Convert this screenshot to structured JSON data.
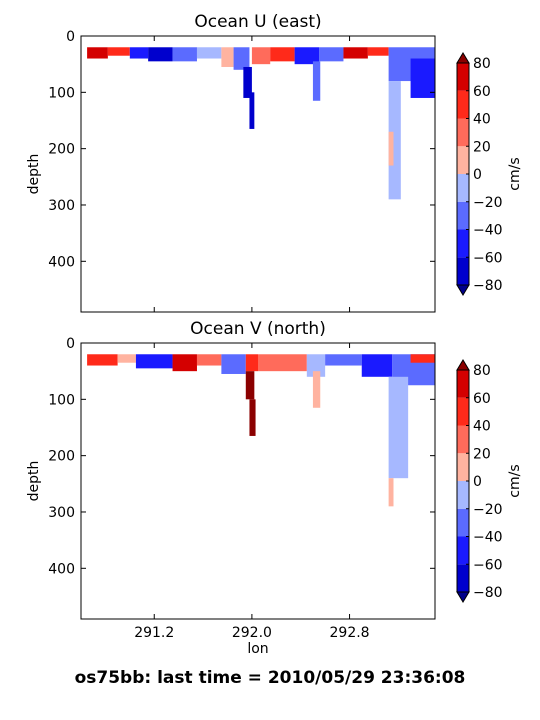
{
  "figure": {
    "main_title": "os75bb: last time = 2010/05/29 23:36:08"
  },
  "colors": {
    "levels": [
      {
        "range": [
          -100,
          -80
        ],
        "color": "#00008b"
      },
      {
        "range": [
          -80,
          -60
        ],
        "color": "#0000cd"
      },
      {
        "range": [
          -60,
          -40
        ],
        "color": "#1a1aff"
      },
      {
        "range": [
          -40,
          -20
        ],
        "color": "#5b6bff"
      },
      {
        "range": [
          -20,
          0
        ],
        "color": "#a6b8ff"
      },
      {
        "range": [
          0,
          20
        ],
        "color": "#ffb3a0"
      },
      {
        "range": [
          20,
          40
        ],
        "color": "#ff6b5b"
      },
      {
        "range": [
          40,
          60
        ],
        "color": "#ff2a1a"
      },
      {
        "range": [
          60,
          80
        ],
        "color": "#d40000"
      },
      {
        "range": [
          80,
          100
        ],
        "color": "#8b0000"
      }
    ]
  },
  "chart_data": [
    {
      "type": "heatmap",
      "title": "Ocean U (east)",
      "xlabel": "",
      "ylabel": "depth",
      "xlim": [
        290.6,
        293.5
      ],
      "ylim": [
        490,
        0
      ],
      "yticks": [
        0,
        100,
        200,
        300,
        400
      ],
      "xticks": [
        291.2,
        292.0,
        292.8
      ],
      "show_xticklabels": false,
      "colorbar": {
        "label": "cm/s",
        "ticks": [
          80,
          60,
          40,
          20,
          0,
          -20,
          -40,
          -60,
          -80
        ],
        "extend": "both"
      },
      "cells": [
        {
          "x": [
            290.65,
            290.82
          ],
          "z": [
            20,
            40
          ],
          "v": 70
        },
        {
          "x": [
            290.82,
            291.0
          ],
          "z": [
            20,
            35
          ],
          "v": 50
        },
        {
          "x": [
            291.0,
            291.15
          ],
          "z": [
            20,
            40
          ],
          "v": -50
        },
        {
          "x": [
            291.15,
            291.35
          ],
          "z": [
            20,
            45
          ],
          "v": -70
        },
        {
          "x": [
            291.35,
            291.55
          ],
          "z": [
            20,
            45
          ],
          "v": -30
        },
        {
          "x": [
            291.55,
            291.75
          ],
          "z": [
            20,
            40
          ],
          "v": -15
        },
        {
          "x": [
            291.75,
            291.85
          ],
          "z": [
            20,
            55
          ],
          "v": 15
        },
        {
          "x": [
            291.85,
            291.98
          ],
          "z": [
            20,
            60
          ],
          "v": -30
        },
        {
          "x": [
            291.93,
            292.0
          ],
          "z": [
            55,
            110
          ],
          "v": -70
        },
        {
          "x": [
            291.98,
            292.02
          ],
          "z": [
            100,
            165
          ],
          "v": -70
        },
        {
          "x": [
            292.0,
            292.15
          ],
          "z": [
            20,
            50
          ],
          "v": 30
        },
        {
          "x": [
            292.15,
            292.35
          ],
          "z": [
            20,
            45
          ],
          "v": 50
        },
        {
          "x": [
            292.35,
            292.55
          ],
          "z": [
            20,
            50
          ],
          "v": -60
        },
        {
          "x": [
            292.5,
            292.56
          ],
          "z": [
            45,
            115
          ],
          "v": -30
        },
        {
          "x": [
            292.55,
            292.75
          ],
          "z": [
            20,
            45
          ],
          "v": -25
        },
        {
          "x": [
            292.75,
            292.95
          ],
          "z": [
            20,
            40
          ],
          "v": 60
        },
        {
          "x": [
            292.95,
            293.12
          ],
          "z": [
            20,
            35
          ],
          "v": 50
        },
        {
          "x": [
            293.12,
            293.5
          ],
          "z": [
            20,
            80
          ],
          "v": -25
        },
        {
          "x": [
            293.3,
            293.5
          ],
          "z": [
            40,
            110
          ],
          "v": -45
        },
        {
          "x": [
            293.12,
            293.22
          ],
          "z": [
            80,
            290
          ],
          "v": -15
        },
        {
          "x": [
            293.12,
            293.16
          ],
          "z": [
            170,
            230
          ],
          "v": 15
        }
      ]
    },
    {
      "type": "heatmap",
      "title": "Ocean V (north)",
      "xlabel": "lon",
      "ylabel": "depth",
      "xlim": [
        290.6,
        293.5
      ],
      "ylim": [
        490,
        0
      ],
      "yticks": [
        0,
        100,
        200,
        300,
        400
      ],
      "xticks": [
        291.2,
        292.0,
        292.8
      ],
      "show_xticklabels": true,
      "colorbar": {
        "label": "cm/s",
        "ticks": [
          80,
          60,
          40,
          20,
          0,
          -20,
          -40,
          -60,
          -80
        ],
        "extend": "both"
      },
      "cells": [
        {
          "x": [
            290.65,
            290.9
          ],
          "z": [
            20,
            40
          ],
          "v": 40
        },
        {
          "x": [
            290.9,
            291.05
          ],
          "z": [
            20,
            35
          ],
          "v": 15
        },
        {
          "x": [
            291.05,
            291.35
          ],
          "z": [
            20,
            45
          ],
          "v": -50
        },
        {
          "x": [
            291.35,
            291.55
          ],
          "z": [
            20,
            50
          ],
          "v": 60
        },
        {
          "x": [
            291.55,
            291.75
          ],
          "z": [
            20,
            40
          ],
          "v": 30
        },
        {
          "x": [
            291.75,
            291.95
          ],
          "z": [
            20,
            55
          ],
          "v": -40
        },
        {
          "x": [
            291.95,
            292.05
          ],
          "z": [
            20,
            50
          ],
          "v": 45
        },
        {
          "x": [
            291.95,
            292.02
          ],
          "z": [
            50,
            100
          ],
          "v": 85
        },
        {
          "x": [
            291.98,
            292.03
          ],
          "z": [
            100,
            165
          ],
          "v": 85
        },
        {
          "x": [
            292.05,
            292.45
          ],
          "z": [
            20,
            50
          ],
          "v": 25
        },
        {
          "x": [
            292.45,
            292.6
          ],
          "z": [
            20,
            60
          ],
          "v": -20
        },
        {
          "x": [
            292.5,
            292.56
          ],
          "z": [
            50,
            115
          ],
          "v": 15
        },
        {
          "x": [
            292.6,
            292.9
          ],
          "z": [
            20,
            40
          ],
          "v": -25
        },
        {
          "x": [
            292.9,
            293.15
          ],
          "z": [
            20,
            60
          ],
          "v": -45
        },
        {
          "x": [
            293.15,
            293.5
          ],
          "z": [
            20,
            75
          ],
          "v": -35
        },
        {
          "x": [
            293.3,
            293.5
          ],
          "z": [
            20,
            35
          ],
          "v": 55
        },
        {
          "x": [
            293.12,
            293.28
          ],
          "z": [
            60,
            240
          ],
          "v": -15
        },
        {
          "x": [
            293.12,
            293.16
          ],
          "z": [
            240,
            290
          ],
          "v": 15
        }
      ]
    }
  ]
}
